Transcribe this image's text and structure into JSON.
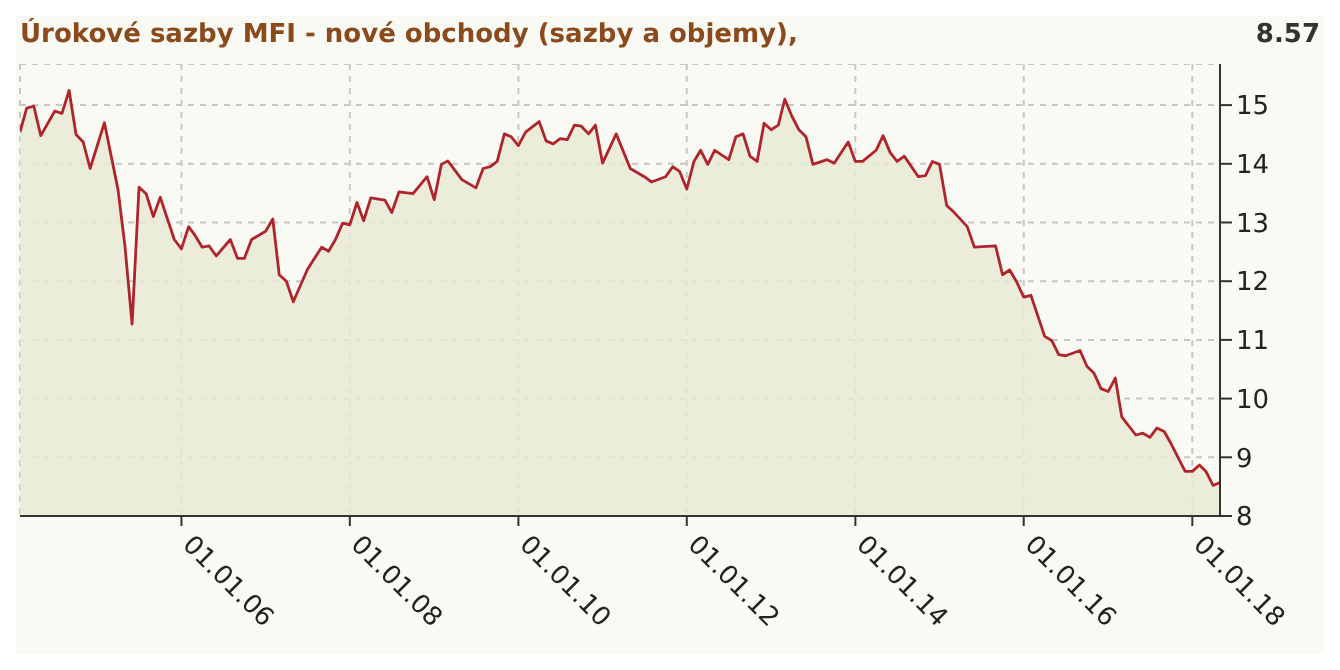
{
  "chart_data": {
    "type": "area",
    "title": "Úrokové sazby MFI - nové obchody (sazby a objemy),",
    "annotations": [
      "8.57"
    ],
    "x": [
      "2004-02",
      "2004-03",
      "2004-04",
      "2004-05",
      "2004-07",
      "2004-08",
      "2004-09",
      "2004-10",
      "2004-11",
      "2004-12",
      "2005-02",
      "2005-04",
      "2005-05",
      "2005-06",
      "2005-07",
      "2005-08",
      "2005-09",
      "2005-10",
      "2005-12",
      "2006-01",
      "2006-02",
      "2006-03",
      "2006-04",
      "2006-05",
      "2006-06",
      "2006-08",
      "2006-09",
      "2006-10",
      "2006-11",
      "2007-01",
      "2007-02",
      "2007-03",
      "2007-04",
      "2007-05",
      "2007-07",
      "2007-09",
      "2007-10",
      "2007-11",
      "2007-12",
      "2008-01",
      "2008-02",
      "2008-03",
      "2008-04",
      "2008-06",
      "2008-07",
      "2008-08",
      "2008-10",
      "2008-12",
      "2009-01",
      "2009-02",
      "2009-03",
      "2009-05",
      "2009-07",
      "2009-08",
      "2009-09",
      "2009-10",
      "2009-11",
      "2009-12",
      "2010-01",
      "2010-02",
      "2010-04",
      "2010-05",
      "2010-06",
      "2010-07",
      "2010-08",
      "2010-09",
      "2010-10",
      "2010-11",
      "2010-12",
      "2011-01",
      "2011-03",
      "2011-05",
      "2011-07",
      "2011-08",
      "2011-10",
      "2011-11",
      "2011-12",
      "2012-01",
      "2012-02",
      "2012-03",
      "2012-04",
      "2012-05",
      "2012-07",
      "2012-08",
      "2012-09",
      "2012-10",
      "2012-11",
      "2012-12",
      "2013-01",
      "2013-02",
      "2013-03",
      "2013-04",
      "2013-05",
      "2013-06",
      "2013-07",
      "2013-09",
      "2013-10",
      "2013-12",
      "2014-01",
      "2014-02",
      "2014-04",
      "2014-05",
      "2014-06",
      "2014-07",
      "2014-08",
      "2014-10",
      "2014-11",
      "2014-12",
      "2015-01",
      "2015-02",
      "2015-03",
      "2015-05",
      "2015-06",
      "2015-09",
      "2015-10",
      "2015-11",
      "2015-12",
      "2016-01",
      "2016-02",
      "2016-04",
      "2016-05",
      "2016-06",
      "2016-07",
      "2016-09",
      "2016-10",
      "2016-11",
      "2016-12",
      "2017-01",
      "2017-02",
      "2017-03",
      "2017-05",
      "2017-06",
      "2017-07",
      "2017-08",
      "2017-09",
      "2017-10",
      "2017-12",
      "2018-01",
      "2018-02",
      "2018-03",
      "2018-04",
      "2018-05"
    ],
    "series": [
      {
        "color": "#b0242c",
        "values": [
          14.54,
          14.95,
          14.98,
          14.48,
          14.9,
          14.86,
          15.25,
          14.5,
          14.37,
          13.92,
          14.7,
          13.56,
          12.6,
          11.27,
          13.6,
          13.49,
          13.1,
          13.43,
          12.71,
          12.55,
          12.93,
          12.78,
          12.58,
          12.6,
          12.43,
          12.71,
          12.39,
          12.39,
          12.71,
          12.85,
          13.06,
          12.11,
          12.0,
          11.65,
          12.2,
          12.58,
          12.51,
          12.72,
          12.99,
          12.96,
          13.34,
          13.03,
          13.42,
          13.38,
          13.17,
          13.52,
          13.49,
          13.78,
          13.39,
          13.99,
          14.05,
          13.73,
          13.59,
          13.92,
          13.95,
          14.04,
          14.51,
          14.46,
          14.31,
          14.54,
          14.72,
          14.39,
          14.34,
          14.43,
          14.41,
          14.66,
          14.64,
          14.51,
          14.66,
          14.01,
          14.51,
          13.92,
          13.78,
          13.69,
          13.78,
          13.95,
          13.87,
          13.57,
          14.04,
          14.23,
          13.99,
          14.23,
          14.07,
          14.46,
          14.51,
          14.13,
          14.04,
          14.69,
          14.58,
          14.66,
          15.1,
          14.81,
          14.58,
          14.46,
          13.99,
          14.07,
          14.01,
          14.37,
          14.04,
          14.04,
          14.23,
          14.48,
          14.19,
          14.04,
          14.13,
          13.78,
          13.8,
          14.04,
          13.99,
          13.29,
          13.19,
          12.93,
          12.58,
          12.6,
          12.11,
          12.19,
          11.99,
          11.73,
          11.76,
          11.06,
          10.99,
          10.75,
          10.73,
          10.82,
          10.55,
          10.43,
          10.17,
          10.12,
          10.35,
          9.69,
          9.38,
          9.41,
          9.34,
          9.5,
          9.44,
          9.23,
          8.76,
          8.76,
          8.87,
          8.76,
          8.52,
          8.57
        ]
      }
    ],
    "xlim": [
      "2004-02",
      "2018-05"
    ],
    "xticks": [
      {
        "value": "2006-01-01",
        "label": "01.01.06"
      },
      {
        "value": "2008-01-01",
        "label": "01.01.08"
      },
      {
        "value": "2010-01-01",
        "label": "01.01.10"
      },
      {
        "value": "2012-01-01",
        "label": "01.01.12"
      },
      {
        "value": "2014-01-01",
        "label": "01.01.14"
      },
      {
        "value": "2016-01-01",
        "label": "01.01.16"
      },
      {
        "value": "2018-01-01",
        "label": "01.01.18"
      }
    ],
    "ylim": [
      8,
      15.7
    ],
    "yticks": [
      8,
      9,
      10,
      11,
      12,
      13,
      14,
      15
    ],
    "grid": true,
    "legend": false,
    "tick_labels": true
  }
}
